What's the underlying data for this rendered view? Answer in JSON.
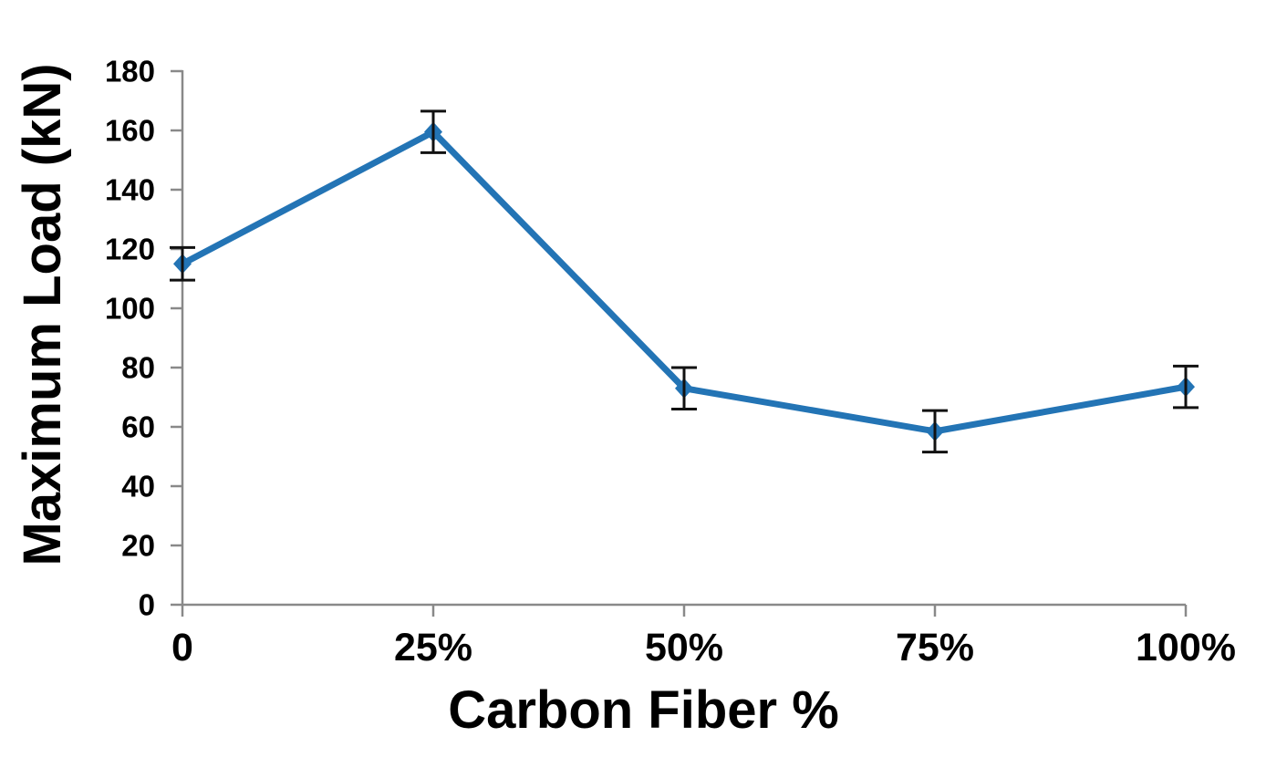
{
  "chart_data": {
    "type": "line",
    "title": "",
    "xlabel": "Carbon Fiber %",
    "ylabel": "Maximum Load (kN)",
    "x": [
      0,
      25,
      50,
      75,
      100
    ],
    "x_tick_labels": [
      "0",
      "25%",
      "50%",
      "75%",
      "100%"
    ],
    "y_ticks": [
      0,
      20,
      40,
      60,
      80,
      100,
      120,
      140,
      160,
      180
    ],
    "xlim": [
      0,
      100
    ],
    "ylim": [
      0,
      180
    ],
    "grid": false,
    "legend": false,
    "series": [
      {
        "name": "Maximum Load (kN)",
        "marker": "diamond",
        "color": "#2374B5",
        "values": [
          115,
          159.5,
          73,
          58.5,
          73.5
        ],
        "error_plus": [
          5.5,
          7,
          7,
          7,
          7
        ],
        "error_minus": [
          5.5,
          7,
          7,
          7,
          7
        ]
      }
    ],
    "colors": {
      "line": "#2374B5",
      "axis": "#898989",
      "text": "#000000",
      "error_bar": "#111111",
      "background": "#FFFFFF"
    }
  }
}
